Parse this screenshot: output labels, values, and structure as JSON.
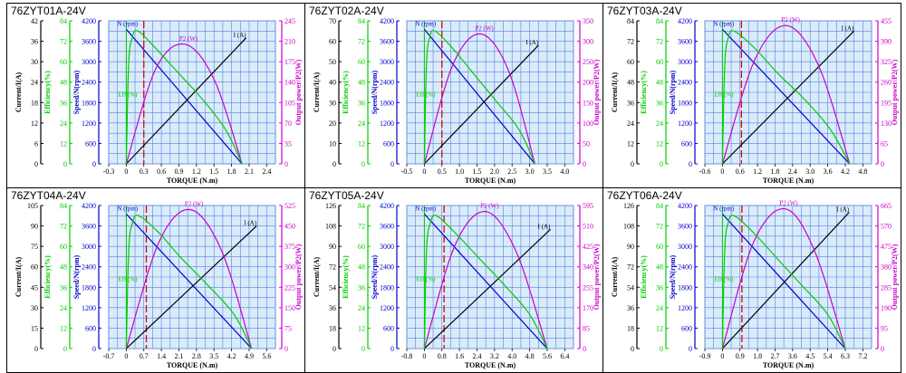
{
  "chart_data": [
    {
      "title": "76ZYT01A-24V",
      "type": "line",
      "xlabel": "TORQUE (N.m)",
      "x_ticks": [
        "-0.3",
        "0",
        "0.3",
        "0.6",
        "0.9",
        "1.2",
        "1.5",
        "1.8",
        "2.1",
        "2.4"
      ],
      "xlim": [
        -0.3,
        2.55
      ],
      "rated_torque": 0.3,
      "stall_torque": 1.98,
      "left_axes": [
        {
          "label": "Current/I(A)",
          "color": "#000000",
          "ticks": [
            "0",
            "6",
            "12",
            "18",
            "24",
            "30",
            "36",
            "42"
          ]
        },
        {
          "label": "Efficiency(%)",
          "color": "#00cc00",
          "ticks": [
            "0",
            "12",
            "24",
            "36",
            "48",
            "60",
            "72",
            "84"
          ]
        },
        {
          "label": "Speed/N(rpm)",
          "color": "#0000cc",
          "ticks": [
            "0",
            "600",
            "1200",
            "1800",
            "2400",
            "3000",
            "3600",
            "4200"
          ]
        }
      ],
      "right_axis": {
        "label": "Output power/P2(W)",
        "color": "#cc00cc",
        "ticks": [
          "0",
          "35",
          "70",
          "105",
          "140",
          "175",
          "210",
          "245"
        ]
      },
      "series": [
        {
          "name": "N (rpm)",
          "color": "#0000cc",
          "x": [
            0,
            1.98
          ],
          "y": [
            3950,
            0
          ]
        },
        {
          "name": "I (A)",
          "color": "#000000",
          "x": [
            0,
            2.05
          ],
          "y": [
            0,
            37
          ]
        },
        {
          "name": "P2 (W)",
          "color": "#cc00cc",
          "x": [
            0,
            0.5,
            1.0,
            1.5,
            1.98
          ],
          "y": [
            0,
            162,
            205,
            145,
            0
          ]
        },
        {
          "name": "Eff (%)",
          "color": "#00cc00",
          "x": [
            0,
            0.04,
            0.1,
            0.2,
            0.5,
            0.9,
            1.3,
            1.7,
            1.98
          ],
          "y": [
            0,
            58,
            74,
            78,
            68,
            53,
            38,
            20,
            0
          ]
        }
      ]
    },
    {
      "title": "76ZYT02A-24V",
      "type": "line",
      "xlabel": "TORQUE (N.m)",
      "x_ticks": [
        "-0.5",
        "0",
        "0.5",
        "1.0",
        "1.5",
        "2.0",
        "2.5",
        "3.0",
        "3.5",
        "4.0"
      ],
      "xlim": [
        -0.5,
        4.25
      ],
      "rated_torque": 0.5,
      "stall_torque": 3.15,
      "left_axes": [
        {
          "label": "Current/I(A)",
          "color": "#000000",
          "ticks": [
            "0",
            "10",
            "20",
            "30",
            "40",
            "50",
            "60",
            "70"
          ]
        },
        {
          "label": "Efficiency(%)",
          "color": "#00cc00",
          "ticks": [
            "0",
            "12",
            "24",
            "36",
            "48",
            "60",
            "72",
            "84"
          ]
        },
        {
          "label": "Speed/N(rpm)",
          "color": "#0000cc",
          "ticks": [
            "0",
            "600",
            "1200",
            "1800",
            "2400",
            "3000",
            "3600",
            "4200"
          ]
        }
      ],
      "right_axis": {
        "label": "Output power/P2(W)",
        "color": "#cc00cc",
        "ticks": [
          "0",
          "50",
          "100",
          "150",
          "200",
          "250",
          "300",
          "350"
        ]
      },
      "series": [
        {
          "name": "N (rpm)",
          "color": "#0000cc",
          "x": [
            0,
            3.15
          ],
          "y": [
            3950,
            0
          ]
        },
        {
          "name": "I (A)",
          "color": "#000000",
          "x": [
            0,
            3.25
          ],
          "y": [
            0,
            58
          ]
        },
        {
          "name": "P2 (W)",
          "color": "#cc00cc",
          "x": [
            0,
            0.8,
            1.6,
            2.4,
            3.15
          ],
          "y": [
            0,
            240,
            318,
            228,
            0
          ]
        },
        {
          "name": "Eff (%)",
          "color": "#00cc00",
          "x": [
            0,
            0.06,
            0.15,
            0.3,
            0.8,
            1.4,
            2.0,
            2.7,
            3.15
          ],
          "y": [
            0,
            58,
            74,
            78,
            68,
            53,
            38,
            20,
            0
          ]
        }
      ]
    },
    {
      "title": "76ZYT03A-24V",
      "type": "line",
      "xlabel": "TORQUE (N.m)",
      "x_ticks": [
        "-0.6",
        "0",
        "0.6",
        "1.2",
        "1.8",
        "2.4",
        "3.0",
        "3.6",
        "4.2",
        "4.8"
      ],
      "xlim": [
        -0.6,
        5.1
      ],
      "rated_torque": 0.65,
      "stall_torque": 4.35,
      "left_axes": [
        {
          "label": "Current/I(A)",
          "color": "#000000",
          "ticks": [
            "0",
            "12",
            "24",
            "36",
            "48",
            "60",
            "72",
            "84"
          ]
        },
        {
          "label": "Efficiency(%)",
          "color": "#00cc00",
          "ticks": [
            "0",
            "12",
            "24",
            "36",
            "48",
            "60",
            "72",
            "84"
          ]
        },
        {
          "label": "Speed/N(rpm)",
          "color": "#0000cc",
          "ticks": [
            "0",
            "600",
            "1200",
            "1800",
            "2400",
            "3000",
            "3600",
            "4200"
          ]
        }
      ],
      "right_axis": {
        "label": "Output power/P2(W)",
        "color": "#cc00cc",
        "ticks": [
          "0",
          "65",
          "130",
          "195",
          "260",
          "325",
          "390",
          "455"
        ]
      },
      "series": [
        {
          "name": "N (rpm)",
          "color": "#0000cc",
          "x": [
            0,
            4.35
          ],
          "y": [
            3950,
            0
          ]
        },
        {
          "name": "I (A)",
          "color": "#000000",
          "x": [
            0,
            4.5
          ],
          "y": [
            0,
            78
          ]
        },
        {
          "name": "P2 (W)",
          "color": "#cc00cc",
          "x": [
            0,
            1.1,
            2.2,
            3.3,
            4.35
          ],
          "y": [
            0,
            330,
            440,
            310,
            0
          ]
        },
        {
          "name": "Eff (%)",
          "color": "#00cc00",
          "x": [
            0,
            0.08,
            0.2,
            0.4,
            1.1,
            1.9,
            2.8,
            3.7,
            4.35
          ],
          "y": [
            0,
            58,
            74,
            78,
            68,
            53,
            38,
            20,
            0
          ]
        }
      ]
    },
    {
      "title": "76ZYT04A-24V",
      "type": "line",
      "xlabel": "TORQUE (N.m)",
      "x_ticks": [
        "-0.7",
        "0",
        "0.7",
        "1.4",
        "2.1",
        "2.8",
        "3.5",
        "4.2",
        "4.9",
        "5.6"
      ],
      "xlim": [
        -0.7,
        5.95
      ],
      "rated_torque": 0.8,
      "stall_torque": 5.0,
      "left_axes": [
        {
          "label": "Current/I(A)",
          "color": "#000000",
          "ticks": [
            "0",
            "15",
            "30",
            "45",
            "60",
            "75",
            "90",
            "105"
          ]
        },
        {
          "label": "Efficiency(%)",
          "color": "#00cc00",
          "ticks": [
            "0",
            "12",
            "24",
            "36",
            "48",
            "60",
            "72",
            "84"
          ]
        },
        {
          "label": "Speed/N(rpm)",
          "color": "#0000cc",
          "ticks": [
            "0",
            "600",
            "1200",
            "1800",
            "2400",
            "3000",
            "3600",
            "4200"
          ]
        }
      ],
      "right_axis": {
        "label": "Output power/P2(W)",
        "color": "#cc00cc",
        "ticks": [
          "0",
          "75",
          "150",
          "225",
          "300",
          "375",
          "450",
          "525"
        ]
      },
      "series": [
        {
          "name": "N (rpm)",
          "color": "#0000cc",
          "x": [
            0,
            5.0
          ],
          "y": [
            3950,
            0
          ]
        },
        {
          "name": "I (A)",
          "color": "#000000",
          "x": [
            0,
            5.2
          ],
          "y": [
            0,
            90
          ]
        },
        {
          "name": "P2 (W)",
          "color": "#cc00cc",
          "x": [
            0,
            1.3,
            2.55,
            3.8,
            5.0
          ],
          "y": [
            0,
            390,
            510,
            360,
            0
          ]
        },
        {
          "name": "Eff (%)",
          "color": "#00cc00",
          "x": [
            0,
            0.1,
            0.25,
            0.5,
            1.3,
            2.2,
            3.2,
            4.3,
            5.0
          ],
          "y": [
            0,
            58,
            74,
            78,
            68,
            53,
            38,
            20,
            0
          ]
        }
      ]
    },
    {
      "title": "76ZYT05A-24V",
      "type": "line",
      "xlabel": "TORQUE (N.m)",
      "x_ticks": [
        "-0.8",
        "0",
        "0.8",
        "1.6",
        "2.4",
        "3.2",
        "4.0",
        "4.8",
        "5.6",
        "6.4"
      ],
      "xlim": [
        -0.8,
        6.8
      ],
      "rated_torque": 0.9,
      "stall_torque": 5.6,
      "left_axes": [
        {
          "label": "Current/I(A)",
          "color": "#000000",
          "ticks": [
            "0",
            "18",
            "36",
            "54",
            "72",
            "90",
            "108",
            "126"
          ]
        },
        {
          "label": "Efficiency(%)",
          "color": "#00cc00",
          "ticks": [
            "0",
            "12",
            "24",
            "36",
            "48",
            "60",
            "72",
            "84"
          ]
        },
        {
          "label": "Speed/N(rpm)",
          "color": "#0000cc",
          "ticks": [
            "0",
            "600",
            "1200",
            "1800",
            "2400",
            "3000",
            "3600",
            "4200"
          ]
        }
      ],
      "right_axis": {
        "label": "Output power/P2(W)",
        "color": "#cc00cc",
        "ticks": [
          "0",
          "85",
          "170",
          "255",
          "340",
          "425",
          "510",
          "595"
        ]
      },
      "series": [
        {
          "name": "N (rpm)",
          "color": "#0000cc",
          "x": [
            0,
            5.6
          ],
          "y": [
            3950,
            0
          ]
        },
        {
          "name": "I (A)",
          "color": "#000000",
          "x": [
            0,
            5.75
          ],
          "y": [
            0,
            105
          ]
        },
        {
          "name": "P2 (W)",
          "color": "#cc00cc",
          "x": [
            0,
            1.4,
            2.8,
            4.2,
            5.6
          ],
          "y": [
            0,
            430,
            570,
            400,
            0
          ]
        },
        {
          "name": "Eff (%)",
          "color": "#00cc00",
          "x": [
            0,
            0.1,
            0.28,
            0.55,
            1.4,
            2.5,
            3.6,
            4.8,
            5.6
          ],
          "y": [
            0,
            58,
            74,
            78,
            68,
            53,
            38,
            20,
            0
          ]
        }
      ]
    },
    {
      "title": "76ZYT06A-24V",
      "type": "line",
      "xlabel": "TORQUE (N.m)",
      "x_ticks": [
        "-0.9",
        "0",
        "0.9",
        "1.8",
        "2.7",
        "3.6",
        "4.5",
        "5.4",
        "6.3",
        "7.2"
      ],
      "xlim": [
        -0.9,
        7.65
      ],
      "rated_torque": 1.0,
      "stall_torque": 6.3,
      "left_axes": [
        {
          "label": "Current/I(A)",
          "color": "#000000",
          "ticks": [
            "0",
            "18",
            "36",
            "54",
            "72",
            "90",
            "108",
            "126"
          ]
        },
        {
          "label": "Efficiency(%)",
          "color": "#00cc00",
          "ticks": [
            "0",
            "12",
            "24",
            "36",
            "48",
            "60",
            "72",
            "84"
          ]
        },
        {
          "label": "Speed/N(rpm)",
          "color": "#0000cc",
          "ticks": [
            "0",
            "600",
            "1200",
            "1800",
            "2400",
            "3000",
            "3600",
            "4200"
          ]
        }
      ],
      "right_axis": {
        "label": "Output power/P2(W)",
        "color": "#cc00cc",
        "ticks": [
          "0",
          "95",
          "190",
          "285",
          "380",
          "475",
          "570",
          "665"
        ]
      },
      "series": [
        {
          "name": "N (rpm)",
          "color": "#0000cc",
          "x": [
            0,
            6.3
          ],
          "y": [
            3950,
            0
          ]
        },
        {
          "name": "I (A)",
          "color": "#000000",
          "x": [
            0,
            6.5
          ],
          "y": [
            0,
            120
          ]
        },
        {
          "name": "P2 (W)",
          "color": "#cc00cc",
          "x": [
            0,
            1.6,
            3.2,
            4.7,
            6.3
          ],
          "y": [
            0,
            495,
            650,
            460,
            0
          ]
        },
        {
          "name": "Eff (%)",
          "color": "#00cc00",
          "x": [
            0,
            0.12,
            0.3,
            0.6,
            1.6,
            2.8,
            4.0,
            5.4,
            6.3
          ],
          "y": [
            0,
            58,
            74,
            78,
            68,
            53,
            38,
            20,
            0
          ]
        }
      ]
    }
  ]
}
